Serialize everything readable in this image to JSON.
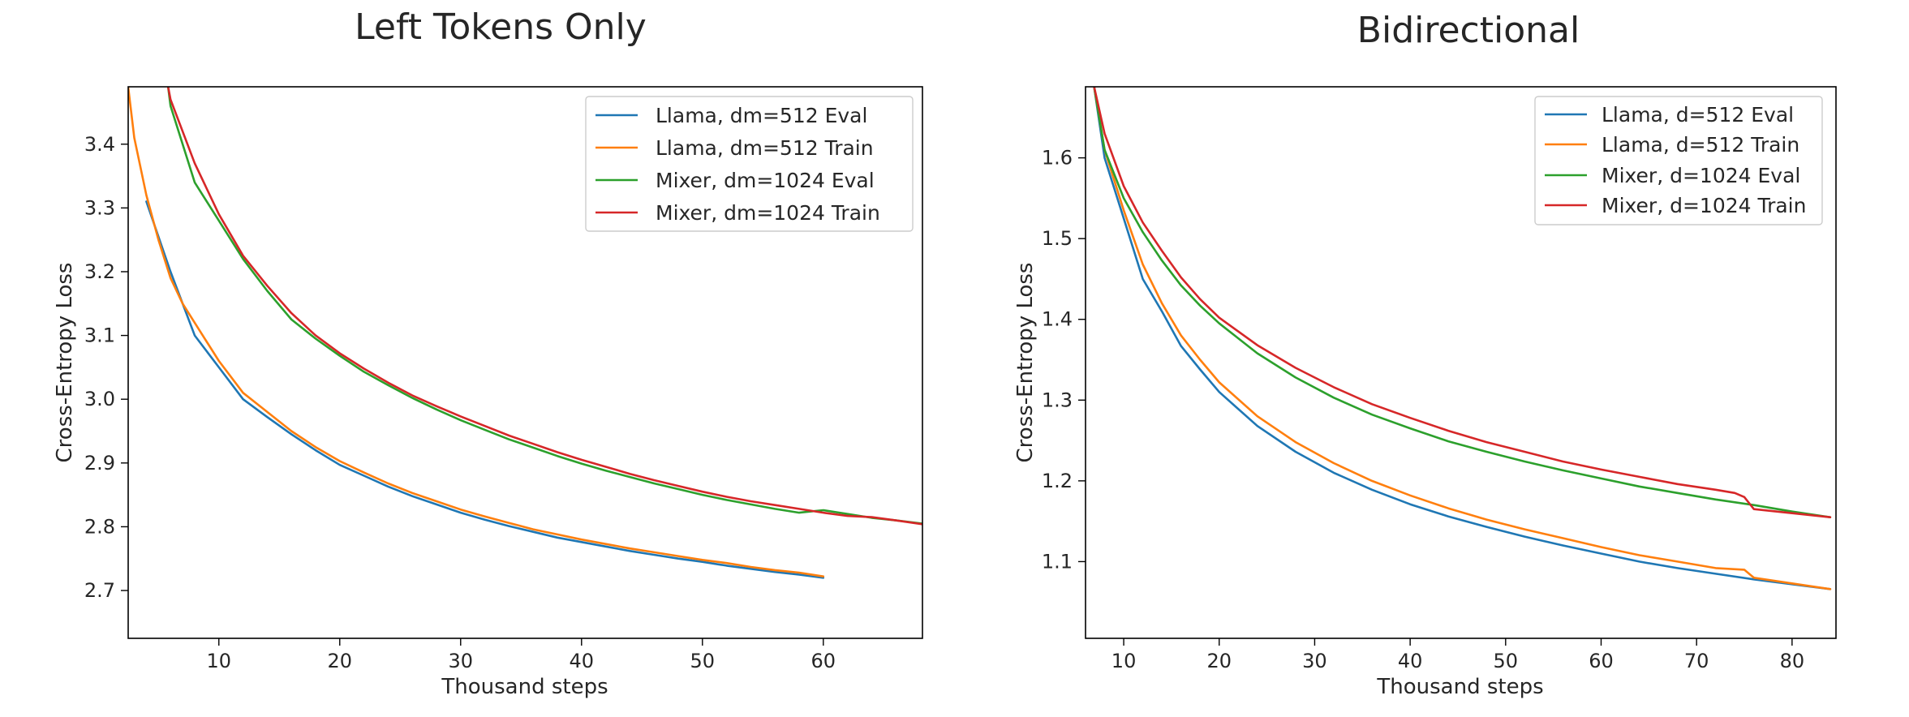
{
  "chart_data": [
    {
      "type": "line",
      "title": "Left Tokens Only",
      "xlabel": "Thousand steps",
      "ylabel": "Cross-Entropy Loss",
      "xlim": [
        2.5,
        68.2
      ],
      "ylim": [
        2.625,
        3.49
      ],
      "xticks": [
        10,
        20,
        30,
        40,
        50,
        60
      ],
      "yticks": [
        2.7,
        2.8,
        2.9,
        3.0,
        3.1,
        3.2,
        3.3,
        3.4
      ],
      "xtick_labels": [
        "10",
        "20",
        "30",
        "40",
        "50",
        "60"
      ],
      "ytick_labels": [
        "2.7",
        "2.8",
        "2.9",
        "3.0",
        "3.1",
        "3.2",
        "3.3",
        "3.4"
      ],
      "legend_position": "upper right",
      "series": [
        {
          "name": "Llama, dm=512 Eval",
          "color": "#1f77b4",
          "x": [
            4,
            6,
            8,
            10,
            12,
            14,
            16,
            18,
            20,
            22,
            24,
            26,
            28,
            30,
            32,
            34,
            36,
            38,
            40,
            42,
            44,
            46,
            48,
            50,
            52,
            54,
            56,
            58,
            60
          ],
          "y": [
            3.31,
            3.2,
            3.1,
            3.05,
            3.0,
            2.972,
            2.945,
            2.92,
            2.897,
            2.88,
            2.863,
            2.848,
            2.835,
            2.822,
            2.811,
            2.801,
            2.792,
            2.783,
            2.776,
            2.769,
            2.762,
            2.756,
            2.75,
            2.745,
            2.739,
            2.734,
            2.729,
            2.725,
            2.72
          ]
        },
        {
          "name": "Llama, dm=512 Train",
          "color": "#ff7f0e",
          "x": [
            2.5,
            3,
            4,
            5,
            6,
            7,
            8,
            9,
            10,
            12,
            14,
            16,
            18,
            20,
            22,
            24,
            26,
            28,
            30,
            32,
            34,
            36,
            38,
            40,
            42,
            44,
            46,
            48,
            50,
            52,
            54,
            56,
            58,
            60
          ],
          "y": [
            3.49,
            3.41,
            3.32,
            3.25,
            3.19,
            3.15,
            3.12,
            3.09,
            3.06,
            3.01,
            2.98,
            2.95,
            2.925,
            2.903,
            2.885,
            2.868,
            2.853,
            2.84,
            2.827,
            2.816,
            2.806,
            2.796,
            2.788,
            2.78,
            2.773,
            2.766,
            2.76,
            2.754,
            2.748,
            2.743,
            2.737,
            2.732,
            2.728,
            2.722
          ]
        },
        {
          "name": "Mixer, dm=1024 Eval",
          "color": "#2ca02c",
          "x": [
            5.8,
            6,
            8,
            10,
            12,
            14,
            16,
            18,
            20,
            22,
            24,
            26,
            28,
            30,
            32,
            34,
            36,
            38,
            40,
            42,
            44,
            46,
            48,
            50,
            52,
            54,
            56,
            58,
            60,
            62,
            64,
            66,
            68.2
          ],
          "y": [
            3.49,
            3.46,
            3.34,
            3.28,
            3.22,
            3.17,
            3.125,
            3.095,
            3.068,
            3.043,
            3.022,
            3.002,
            2.984,
            2.967,
            2.952,
            2.937,
            2.924,
            2.911,
            2.899,
            2.888,
            2.878,
            2.868,
            2.859,
            2.85,
            2.842,
            2.835,
            2.828,
            2.822,
            2.826,
            2.82,
            2.814,
            2.81,
            2.805
          ]
        },
        {
          "name": "Mixer, dm=1024 Train",
          "color": "#d62728",
          "x": [
            5.8,
            6,
            8,
            10,
            12,
            14,
            16,
            18,
            20,
            22,
            24,
            26,
            28,
            30,
            32,
            34,
            36,
            38,
            40,
            42,
            44,
            46,
            48,
            50,
            52,
            54,
            56,
            58,
            60,
            62,
            64,
            66,
            68.2
          ],
          "y": [
            3.49,
            3.47,
            3.37,
            3.29,
            3.225,
            3.178,
            3.135,
            3.1,
            3.072,
            3.048,
            3.026,
            3.006,
            2.989,
            2.973,
            2.958,
            2.943,
            2.93,
            2.917,
            2.905,
            2.894,
            2.883,
            2.873,
            2.864,
            2.855,
            2.847,
            2.84,
            2.834,
            2.828,
            2.822,
            2.817,
            2.815,
            2.81,
            2.804
          ]
        }
      ]
    },
    {
      "type": "line",
      "title": "Bidirectional",
      "xlabel": "Thousand steps",
      "ylabel": "Cross-Entropy Loss",
      "xlim": [
        6,
        84.6
      ],
      "ylim": [
        1.005,
        1.688
      ],
      "xticks": [
        10,
        20,
        30,
        40,
        50,
        60,
        70,
        80
      ],
      "yticks": [
        1.1,
        1.2,
        1.3,
        1.4,
        1.5,
        1.6
      ],
      "xtick_labels": [
        "10",
        "20",
        "30",
        "40",
        "50",
        "60",
        "70",
        "80"
      ],
      "ytick_labels": [
        "1.1",
        "1.2",
        "1.3",
        "1.4",
        "1.5",
        "1.6"
      ],
      "legend_position": "upper right",
      "series": [
        {
          "name": "Llama, d=512 Eval",
          "color": "#1f77b4",
          "x": [
            6.9,
            8,
            10,
            12,
            14,
            16,
            18,
            20,
            24,
            28,
            32,
            36,
            40,
            44,
            48,
            52,
            56,
            60,
            64,
            68,
            72,
            76,
            80,
            84
          ],
          "y": [
            1.688,
            1.6,
            1.525,
            1.45,
            1.41,
            1.367,
            1.338,
            1.31,
            1.268,
            1.236,
            1.21,
            1.189,
            1.171,
            1.156,
            1.143,
            1.131,
            1.12,
            1.11,
            1.1,
            1.092,
            1.085,
            1.078,
            1.072,
            1.066
          ]
        },
        {
          "name": "Llama, d=512 Train",
          "color": "#ff7f0e",
          "x": [
            6.9,
            8,
            10,
            12,
            14,
            16,
            18,
            20,
            24,
            28,
            32,
            36,
            40,
            44,
            48,
            52,
            56,
            60,
            64,
            68,
            72,
            75,
            76,
            80,
            84
          ],
          "y": [
            1.688,
            1.61,
            1.535,
            1.468,
            1.42,
            1.38,
            1.35,
            1.322,
            1.28,
            1.248,
            1.222,
            1.2,
            1.182,
            1.166,
            1.152,
            1.14,
            1.129,
            1.118,
            1.108,
            1.1,
            1.092,
            1.09,
            1.08,
            1.073,
            1.066
          ]
        },
        {
          "name": "Mixer, d=1024 Eval",
          "color": "#2ca02c",
          "x": [
            6.9,
            8,
            10,
            12,
            14,
            16,
            18,
            20,
            24,
            28,
            32,
            36,
            40,
            44,
            48,
            52,
            56,
            60,
            64,
            68,
            72,
            76,
            80,
            84
          ],
          "y": [
            1.688,
            1.61,
            1.55,
            1.508,
            1.473,
            1.442,
            1.417,
            1.395,
            1.358,
            1.328,
            1.303,
            1.282,
            1.265,
            1.249,
            1.236,
            1.224,
            1.213,
            1.203,
            1.193,
            1.185,
            1.177,
            1.17,
            1.162,
            1.155
          ]
        },
        {
          "name": "Mixer, d=1024 Train",
          "color": "#d62728",
          "x": [
            6.9,
            8,
            10,
            12,
            14,
            16,
            18,
            20,
            24,
            28,
            32,
            36,
            40,
            44,
            48,
            52,
            56,
            60,
            64,
            68,
            72,
            74,
            75,
            76,
            80,
            84
          ],
          "y": [
            1.688,
            1.63,
            1.565,
            1.52,
            1.485,
            1.452,
            1.425,
            1.402,
            1.368,
            1.34,
            1.316,
            1.295,
            1.278,
            1.262,
            1.248,
            1.236,
            1.224,
            1.214,
            1.205,
            1.196,
            1.189,
            1.185,
            1.18,
            1.165,
            1.16,
            1.155
          ]
        }
      ]
    }
  ]
}
